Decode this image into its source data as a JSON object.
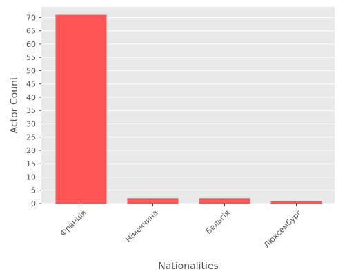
{
  "chart_data": {
    "type": "bar",
    "categories": [
      "Франція",
      "Німеччина",
      "Бельгія",
      "Люксембург"
    ],
    "values": [
      71,
      2,
      2,
      1
    ],
    "title": "",
    "xlabel": "Nationalities",
    "ylabel": "Actor Count",
    "ylim": [
      0,
      74
    ],
    "yticks": [
      0,
      5,
      10,
      15,
      20,
      25,
      30,
      35,
      40,
      45,
      50,
      55,
      60,
      65,
      70
    ],
    "grid": true,
    "legend": "none",
    "colors": {
      "bar": "#ff5555",
      "background": "#e9e9e9",
      "grid": "#ffffff"
    }
  }
}
